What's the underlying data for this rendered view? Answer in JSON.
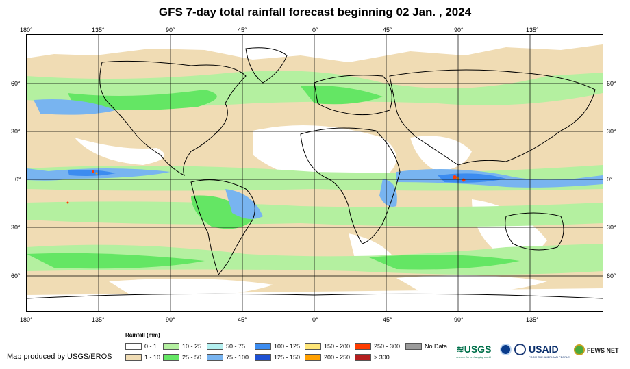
{
  "title": "GFS 7-day total rainfall forecast beginning 02 Jan. , 2024",
  "lon_ticks_top": [
    "180°",
    "135°",
    "90°",
    "45°",
    "0°",
    "45°",
    "90°",
    "135°"
  ],
  "lon_ticks_bottom": [
    "180°",
    "135°",
    "90°",
    "45°",
    "0°",
    "45°",
    "90°",
    "135°"
  ],
  "lat_ticks_left": [
    "60°",
    "30°",
    "0°",
    "30°",
    "60°"
  ],
  "lat_ticks_right": [
    "60°",
    "30°",
    "0°",
    "30°",
    "60°"
  ],
  "legend": {
    "title": "Rainfall (mm)",
    "items": [
      {
        "label": "0 - 1",
        "color": "#ffffff"
      },
      {
        "label": "1 - 10",
        "color": "#f0dcb4"
      },
      {
        "label": "10 - 25",
        "color": "#b4f0a0"
      },
      {
        "label": "25 - 50",
        "color": "#64e664"
      },
      {
        "label": "50 - 75",
        "color": "#b4f0f0"
      },
      {
        "label": "75 - 100",
        "color": "#78b4f0"
      },
      {
        "label": "100 - 125",
        "color": "#3c8cf0"
      },
      {
        "label": "125 - 150",
        "color": "#1e50d2"
      },
      {
        "label": "150 - 200",
        "color": "#ffe678"
      },
      {
        "label": "200 - 250",
        "color": "#ffa000"
      },
      {
        "label": "250 - 300",
        "color": "#ff3c00"
      },
      {
        "label": "> 300",
        "color": "#b41e1e"
      },
      {
        "label": "No Data",
        "color": "#9b9b9b"
      }
    ]
  },
  "credit": "Map produced by USGS/EROS",
  "logos": {
    "usgs": "USGS",
    "usgs_tagline": "science for a changing world",
    "usaid": "USAID",
    "usaid_tagline": "FROM THE AMERICAN PEOPLE",
    "fews": "FEWS NET"
  }
}
